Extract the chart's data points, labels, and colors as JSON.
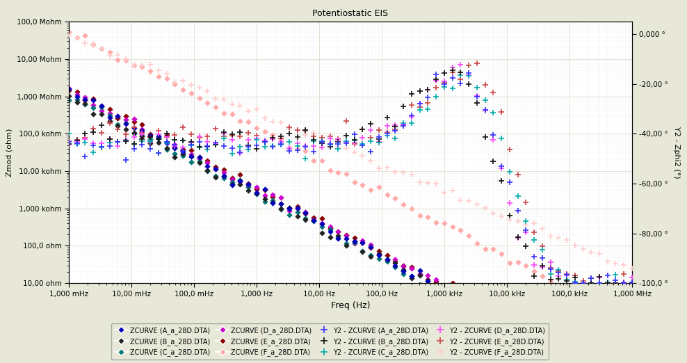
{
  "title": "Potentiostatic EIS",
  "xlabel": "Freq (Hz)",
  "ylabel_left": "Zmod (ohm)",
  "ylabel_right": "Y2 - Zphi2 (°)",
  "bg_color": "#E8E8D8",
  "plot_bg": "#FFFFFF",
  "legend_bg": "#E8E8D8",
  "x_ticks_labels": [
    "1,000 mHz",
    "10,00 mHz",
    "100,0 mHz",
    "1,000 Hz",
    "10,00 Hz",
    "100,0 Hz",
    "1,000 kHz",
    "10,00 kHz",
    "100,0 kHz",
    "1,000 MHz"
  ],
  "x_ticks_values": [
    0.001,
    0.01,
    0.1,
    1.0,
    10.0,
    100.0,
    1000.0,
    10000.0,
    100000.0,
    1000000.0
  ],
  "y_left_ticks_labels": [
    "10,00 ohm",
    "100,0 ohm",
    "1,000 kohm",
    "10,00 kohm",
    "100,0 kohm",
    "1,000 Mohm",
    "10,00 Mohm",
    "100,0 Mohm"
  ],
  "y_left_ticks_values": [
    10,
    100,
    1000,
    10000,
    100000,
    1000000,
    10000000,
    100000000
  ],
  "y_right_ticks_labels": [
    "-100,0 °",
    "-80,00 °",
    "-60,00 °",
    "-40,00 °",
    "-20,00 °",
    "0,000 °"
  ],
  "y_right_ticks_values": [
    -100,
    -80,
    -60,
    -40,
    -20,
    0
  ],
  "series": {
    "ZCURVE_A": {
      "color": "#0000BB",
      "marker": "D",
      "s": 14,
      "label": "ZCURVE (A_a_28D.DTA)"
    },
    "ZCURVE_B": {
      "color": "#222222",
      "marker": "D",
      "s": 14,
      "label": "ZCURVE (B_a_28D.DTA)"
    },
    "ZCURVE_C": {
      "color": "#007777",
      "marker": "D",
      "s": 14,
      "label": "ZCURVE (C_a_28D.DTA)"
    },
    "ZCURVE_D": {
      "color": "#CC00CC",
      "marker": "D",
      "s": 14,
      "label": "ZCURVE (D_a_28D.DTA)"
    },
    "ZCURVE_E": {
      "color": "#880000",
      "marker": "D",
      "s": 14,
      "label": "ZCURVE (E_a_28D.DTA)"
    },
    "ZCURVE_F": {
      "color": "#FFAAAA",
      "marker": "D",
      "s": 14,
      "label": "ZCURVE (F_a_28D.DTA)"
    },
    "Y2_A": {
      "color": "#3333FF",
      "marker": "+",
      "s": 35,
      "lw": 1.2,
      "label": "Y2 - ZCURVE (A_a_28D.DTA)"
    },
    "Y2_B": {
      "color": "#111111",
      "marker": "+",
      "s": 35,
      "lw": 1.2,
      "label": "Y2 - ZCURVE (B_a_28D.DTA)"
    },
    "Y2_C": {
      "color": "#00AAAA",
      "marker": "+",
      "s": 35,
      "lw": 1.2,
      "label": "Y2 - ZCURVE (C_a_28D.DTA)"
    },
    "Y2_D": {
      "color": "#FF44FF",
      "marker": "+",
      "s": 35,
      "lw": 1.2,
      "label": "Y2 - ZCURVE (D_a_28D.DTA)"
    },
    "Y2_E": {
      "color": "#CC4444",
      "marker": "+",
      "s": 35,
      "lw": 1.2,
      "label": "Y2 - ZCURVE (E_a_28D.DTA)"
    },
    "Y2_F": {
      "color": "#FFCCCC",
      "marker": "+",
      "s": 35,
      "lw": 1.2,
      "label": "Y2 - ZCURVE (F_a_28D.DTA)"
    }
  }
}
